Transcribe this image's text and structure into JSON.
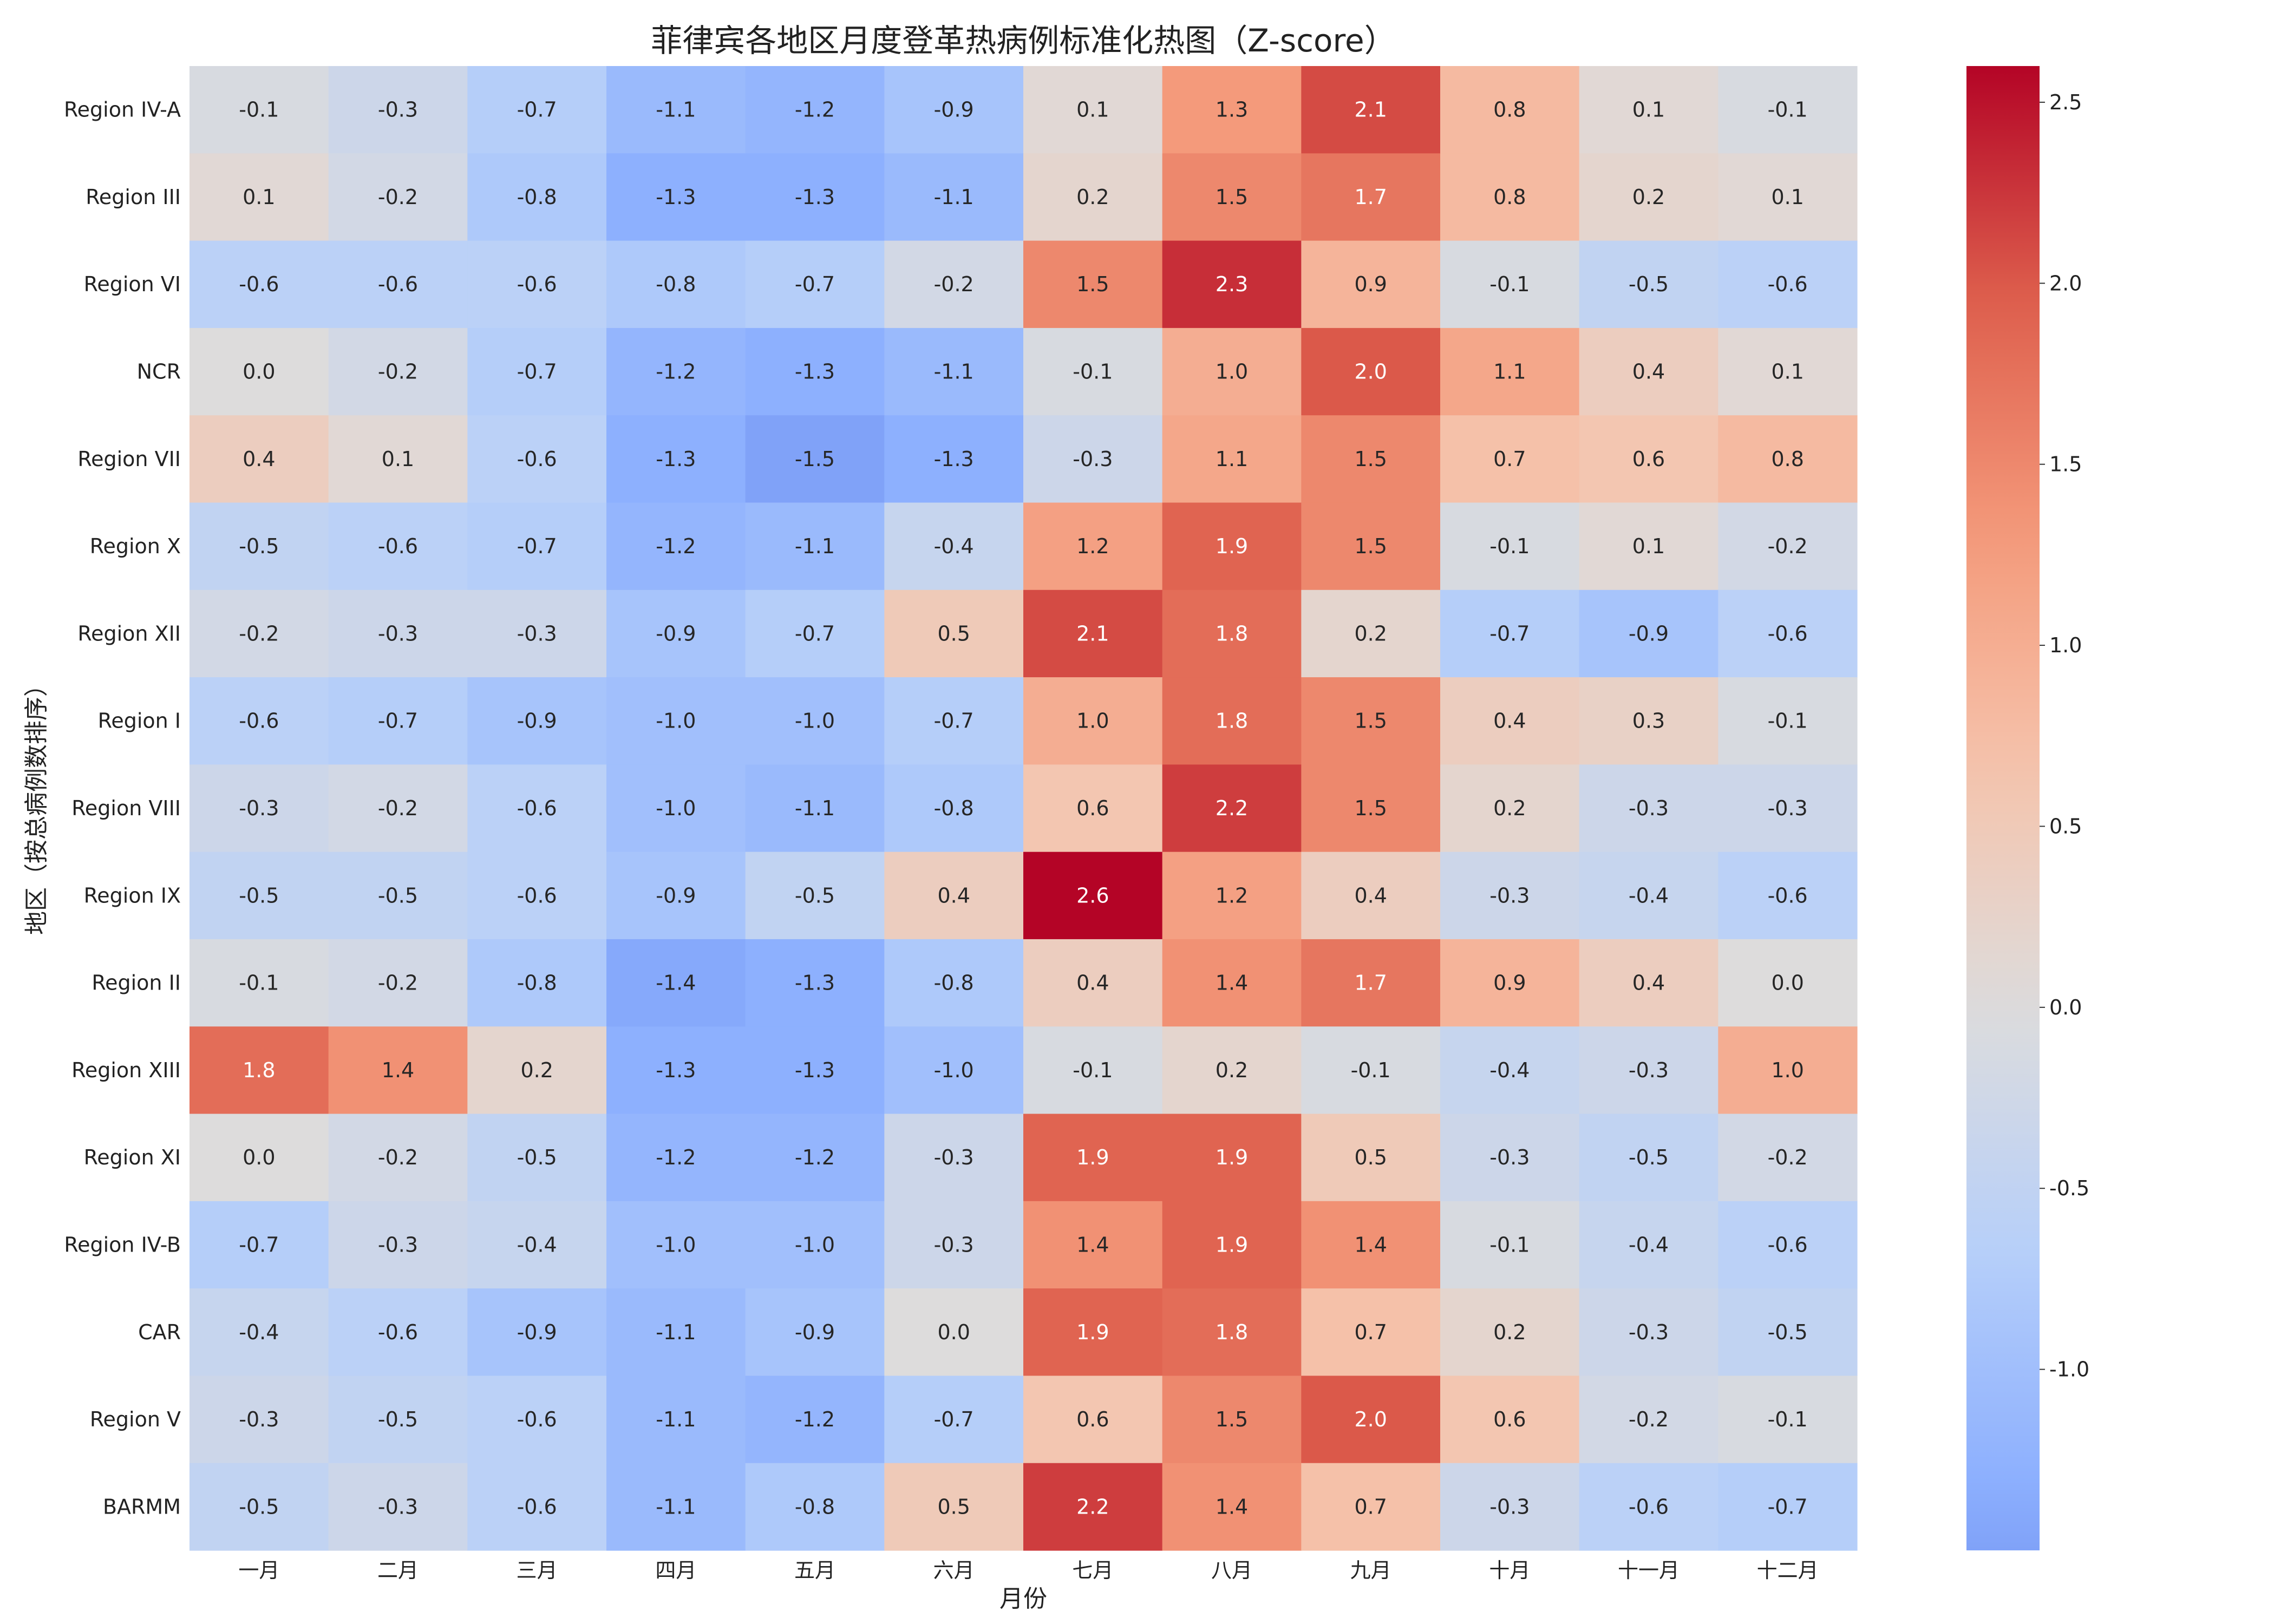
{
  "chart_data": {
    "type": "heatmap",
    "title": "菲律宾各地区月度登革热病例标准化热图（Z-score）",
    "xlabel": "月份",
    "ylabel": "地区（按总病例数排序）",
    "x": [
      "一月",
      "二月",
      "三月",
      "四月",
      "五月",
      "六月",
      "七月",
      "八月",
      "九月",
      "十月",
      "十一月",
      "十二月"
    ],
    "y": [
      "Region IV-A",
      "Region III",
      "Region VI",
      "NCR",
      "Region VII",
      "Region X",
      "Region XII",
      "Region I",
      "Region VIII",
      "Region IX",
      "Region II",
      "Region XIII",
      "Region XI",
      "Region IV-B",
      "CAR",
      "Region V",
      "BARMM"
    ],
    "values": [
      [
        -0.1,
        -0.3,
        -0.7,
        -1.1,
        -1.2,
        -0.9,
        0.1,
        1.3,
        2.1,
        0.8,
        0.1,
        -0.1
      ],
      [
        0.1,
        -0.2,
        -0.8,
        -1.3,
        -1.3,
        -1.1,
        0.2,
        1.5,
        1.7,
        0.8,
        0.2,
        0.1
      ],
      [
        -0.6,
        -0.6,
        -0.6,
        -0.8,
        -0.7,
        -0.2,
        1.5,
        2.3,
        0.9,
        -0.1,
        -0.5,
        -0.6
      ],
      [
        -0.0,
        -0.2,
        -0.7,
        -1.2,
        -1.3,
        -1.1,
        -0.1,
        1.0,
        2.0,
        1.1,
        0.4,
        0.1
      ],
      [
        0.4,
        0.1,
        -0.6,
        -1.3,
        -1.5,
        -1.3,
        -0.3,
        1.1,
        1.5,
        0.7,
        0.6,
        0.8
      ],
      [
        -0.5,
        -0.6,
        -0.7,
        -1.2,
        -1.1,
        -0.4,
        1.2,
        1.9,
        1.5,
        -0.1,
        0.1,
        -0.2
      ],
      [
        -0.2,
        -0.3,
        -0.3,
        -0.9,
        -0.7,
        0.5,
        2.1,
        1.8,
        0.2,
        -0.7,
        -0.9,
        -0.6
      ],
      [
        -0.6,
        -0.7,
        -0.9,
        -1.0,
        -1.0,
        -0.7,
        1.0,
        1.8,
        1.5,
        0.4,
        0.3,
        -0.1
      ],
      [
        -0.3,
        -0.2,
        -0.6,
        -1.0,
        -1.1,
        -0.8,
        0.6,
        2.2,
        1.5,
        0.2,
        -0.3,
        -0.3
      ],
      [
        -0.5,
        -0.5,
        -0.6,
        -0.9,
        -0.5,
        0.4,
        2.6,
        1.2,
        0.4,
        -0.3,
        -0.4,
        -0.6
      ],
      [
        -0.1,
        -0.2,
        -0.8,
        -1.4,
        -1.3,
        -0.8,
        0.4,
        1.4,
        1.7,
        0.9,
        0.4,
        -0.0
      ],
      [
        1.8,
        1.4,
        0.2,
        -1.3,
        -1.3,
        -1.0,
        -0.1,
        0.2,
        -0.1,
        -0.4,
        -0.3,
        1.0
      ],
      [
        0.0,
        -0.2,
        -0.5,
        -1.2,
        -1.2,
        -0.3,
        1.9,
        1.9,
        0.5,
        -0.3,
        -0.5,
        -0.2
      ],
      [
        -0.7,
        -0.3,
        -0.4,
        -1.0,
        -1.0,
        -0.3,
        1.4,
        1.9,
        1.4,
        -0.1,
        -0.4,
        -0.6
      ],
      [
        -0.4,
        -0.6,
        -0.9,
        -1.1,
        -0.9,
        0.0,
        1.9,
        1.8,
        0.7,
        0.2,
        -0.3,
        -0.5
      ],
      [
        -0.3,
        -0.5,
        -0.6,
        -1.1,
        -1.2,
        -0.7,
        0.6,
        1.5,
        2.0,
        0.6,
        -0.2,
        -0.1
      ],
      [
        -0.5,
        -0.3,
        -0.6,
        -1.1,
        -0.8,
        0.5,
        2.2,
        1.4,
        0.7,
        -0.3,
        -0.6,
        -0.7
      ]
    ],
    "colormap": "coolwarm",
    "color_center": 0.0,
    "vmin": -1.5,
    "vmax": 2.6,
    "colorbar": {
      "ticks": [
        -1.0,
        -0.5,
        0.0,
        0.5,
        1.0,
        1.5,
        2.0,
        2.5
      ],
      "tick_labels": [
        "-1.0",
        "-0.5",
        "0.0",
        "0.5",
        "1.0",
        "1.5",
        "2.0",
        "2.5"
      ]
    },
    "value_format": "1 decimal",
    "grid": false
  }
}
